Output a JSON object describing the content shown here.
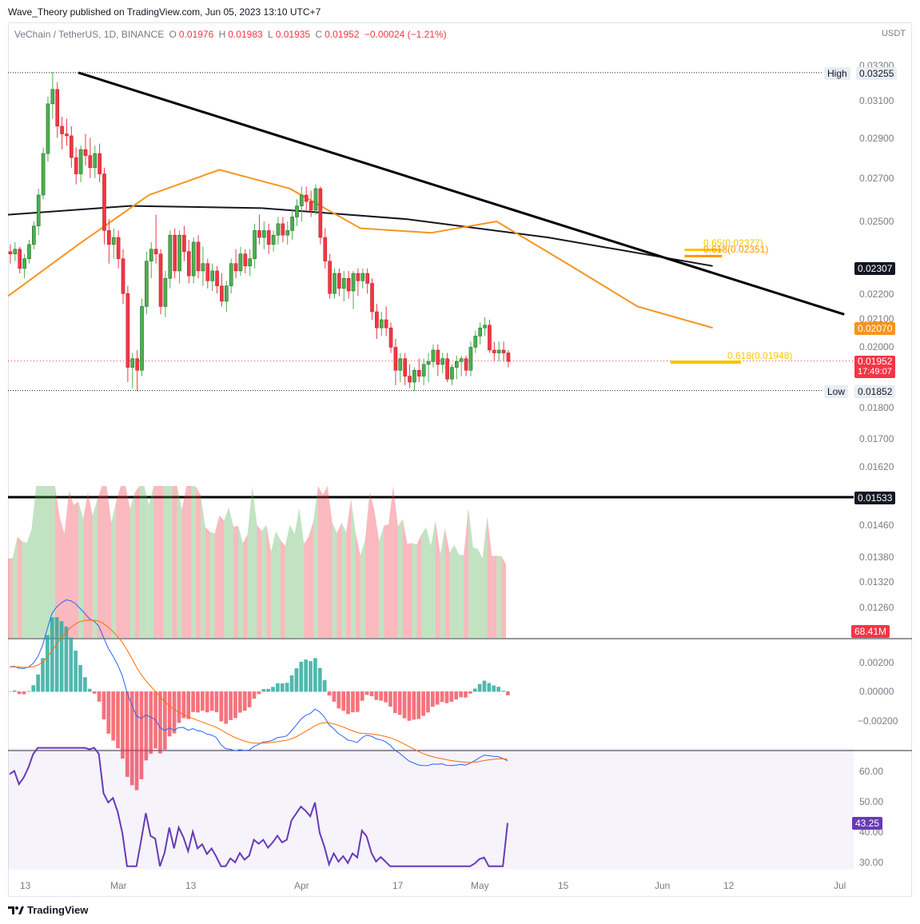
{
  "header": {
    "publisher": "Wave_Theory published on TradingView.com, Jun 05, 2023 13:10 UTC+7"
  },
  "legend": {
    "symbol": "VeChain / TetherUS, 1D, BINANCE",
    "o_label": "O",
    "o_value": "0.01976",
    "h_label": "H",
    "h_value": "0.01983",
    "l_label": "L",
    "l_value": "0.01935",
    "c_label": "C",
    "c_value": "0.01952",
    "change": "−0.00024 (−1.21%)"
  },
  "unit": "USDT",
  "colors": {
    "up": "#26a69a",
    "up_body": "#4caf50",
    "down": "#f23645",
    "ma50": "#f7941d",
    "ma200": "#131722",
    "fib": "#f7c600",
    "fib_strong": "#ff9800",
    "macd": "#2962ff",
    "signal": "#ff6d00",
    "rsi": "#673ab7"
  },
  "price_axis": {
    "ticks": [
      "0.03300",
      "0.03100",
      "0.02900",
      "0.02700",
      "0.02500",
      "0.02200",
      "0.02100",
      "0.02000",
      "0.01800",
      "0.01700",
      "0.01620",
      "0.01460",
      "0.01380",
      "0.01320",
      "0.01260"
    ],
    "high_label": "High",
    "high_value": "0.03255",
    "low_label": "Low",
    "low_value": "0.01852",
    "ma200_value": "0.02307",
    "ma50_value": "0.02070",
    "last_price": "0.01952",
    "countdown": "17:49:07",
    "support_value": "0.01533",
    "volume_value": "68.41M"
  },
  "annotations": {
    "fib_65": "0.65(0.02377)",
    "fib_618_top": "0.618(0.02351)",
    "fib_618_bottom": "0.618(0.01948)"
  },
  "macd_axis": {
    "ticks": [
      "0.00200",
      "0.00000",
      "−0.00200"
    ]
  },
  "rsi_axis": {
    "ticks": [
      "60.00",
      "50.00",
      "40.00",
      "30.00"
    ],
    "value": "43.25"
  },
  "x_axis": {
    "ticks": [
      "13",
      "Mar",
      "13",
      "Apr",
      "17",
      "May",
      "15",
      "Jun",
      "12",
      "Jul"
    ]
  },
  "footer": {
    "brand": "TradingView"
  },
  "chart_data": {
    "type": "candlestick",
    "title": "VeChain / TetherUS, 1D, BINANCE",
    "x_range": [
      "2023-01-06",
      "2023-07-05"
    ],
    "y_range": [
      0.0122,
      0.0335
    ],
    "ohlc_start": "2023-01-06",
    "ohlc": [
      [
        0.0237,
        0.024,
        0.0232,
        0.0236
      ],
      [
        0.0236,
        0.0241,
        0.0233,
        0.0238
      ],
      [
        0.0238,
        0.0239,
        0.0228,
        0.023
      ],
      [
        0.023,
        0.0236,
        0.0226,
        0.0234
      ],
      [
        0.0234,
        0.0242,
        0.0232,
        0.024
      ],
      [
        0.024,
        0.025,
        0.0238,
        0.0248
      ],
      [
        0.0248,
        0.0265,
        0.0244,
        0.0262
      ],
      [
        0.0262,
        0.0285,
        0.026,
        0.0282
      ],
      [
        0.0282,
        0.0312,
        0.0278,
        0.0308
      ],
      [
        0.0308,
        0.0326,
        0.03,
        0.0316
      ],
      [
        0.0316,
        0.032,
        0.029,
        0.0296
      ],
      [
        0.0296,
        0.0301,
        0.0284,
        0.0292
      ],
      [
        0.0292,
        0.03,
        0.0286,
        0.0291
      ],
      [
        0.0291,
        0.0296,
        0.0275,
        0.028
      ],
      [
        0.028,
        0.0285,
        0.0267,
        0.0272
      ],
      [
        0.0272,
        0.0286,
        0.0268,
        0.0284
      ],
      [
        0.0284,
        0.0292,
        0.0276,
        0.0281
      ],
      [
        0.0281,
        0.029,
        0.027,
        0.0275
      ],
      [
        0.0275,
        0.0286,
        0.027,
        0.0282
      ],
      [
        0.0282,
        0.0287,
        0.0268,
        0.0272
      ],
      [
        0.0272,
        0.0275,
        0.024,
        0.0246
      ],
      [
        0.0246,
        0.0251,
        0.0232,
        0.024
      ],
      [
        0.024,
        0.0247,
        0.0234,
        0.0243
      ],
      [
        0.0243,
        0.0246,
        0.023,
        0.0234
      ],
      [
        0.0234,
        0.0238,
        0.0216,
        0.022
      ],
      [
        0.022,
        0.0223,
        0.0188,
        0.0193
      ],
      [
        0.0193,
        0.0198,
        0.0186,
        0.0196
      ],
      [
        0.0196,
        0.0199,
        0.0185,
        0.0192
      ],
      [
        0.0192,
        0.0218,
        0.019,
        0.0215
      ],
      [
        0.0215,
        0.0237,
        0.0212,
        0.0233
      ],
      [
        0.0233,
        0.0241,
        0.0226,
        0.0238
      ],
      [
        0.0238,
        0.0253,
        0.0232,
        0.0236
      ],
      [
        0.0236,
        0.0238,
        0.0212,
        0.0215
      ],
      [
        0.0215,
        0.0229,
        0.0211,
        0.0226
      ],
      [
        0.0226,
        0.0246,
        0.0222,
        0.0244
      ],
      [
        0.0244,
        0.0247,
        0.0226,
        0.0229
      ],
      [
        0.0229,
        0.0246,
        0.0224,
        0.0244
      ],
      [
        0.0244,
        0.0248,
        0.0233,
        0.0237
      ],
      [
        0.0237,
        0.0242,
        0.0224,
        0.0227
      ],
      [
        0.0227,
        0.0243,
        0.0224,
        0.0241
      ],
      [
        0.0241,
        0.0244,
        0.0226,
        0.0229
      ],
      [
        0.0229,
        0.0239,
        0.0223,
        0.0232
      ],
      [
        0.0232,
        0.0234,
        0.0222,
        0.0225
      ],
      [
        0.0225,
        0.0232,
        0.0221,
        0.0229
      ],
      [
        0.0229,
        0.0231,
        0.022,
        0.0223
      ],
      [
        0.0223,
        0.0228,
        0.0215,
        0.0217
      ],
      [
        0.0217,
        0.0225,
        0.0213,
        0.0223
      ],
      [
        0.0223,
        0.0234,
        0.022,
        0.0232
      ],
      [
        0.0232,
        0.0238,
        0.0226,
        0.0229
      ],
      [
        0.0229,
        0.0239,
        0.0227,
        0.0236
      ],
      [
        0.0236,
        0.0238,
        0.0228,
        0.0231
      ],
      [
        0.0231,
        0.0238,
        0.0227,
        0.0234
      ],
      [
        0.0234,
        0.0249,
        0.023,
        0.0246
      ],
      [
        0.0246,
        0.0253,
        0.024,
        0.0243
      ],
      [
        0.0243,
        0.025,
        0.0238,
        0.0246
      ],
      [
        0.0246,
        0.0249,
        0.0236,
        0.024
      ],
      [
        0.024,
        0.0246,
        0.0237,
        0.0244
      ],
      [
        0.0244,
        0.0252,
        0.024,
        0.0249
      ],
      [
        0.0249,
        0.0252,
        0.0241,
        0.0244
      ],
      [
        0.0244,
        0.025,
        0.024,
        0.0246
      ],
      [
        0.0246,
        0.0255,
        0.0242,
        0.0252
      ],
      [
        0.0252,
        0.026,
        0.0248,
        0.0257
      ],
      [
        0.0257,
        0.0266,
        0.025,
        0.0262
      ],
      [
        0.0262,
        0.0266,
        0.0255,
        0.0259
      ],
      [
        0.0259,
        0.0264,
        0.0252,
        0.0255
      ],
      [
        0.0255,
        0.0267,
        0.0253,
        0.0265
      ],
      [
        0.0265,
        0.0266,
        0.024,
        0.0243
      ],
      [
        0.0243,
        0.0247,
        0.023,
        0.0233
      ],
      [
        0.0233,
        0.0236,
        0.0218,
        0.022
      ],
      [
        0.022,
        0.023,
        0.0218,
        0.0228
      ],
      [
        0.0228,
        0.023,
        0.0219,
        0.0222
      ],
      [
        0.0222,
        0.0229,
        0.0217,
        0.0226
      ],
      [
        0.0226,
        0.0229,
        0.0218,
        0.0221
      ],
      [
        0.0221,
        0.0229,
        0.0214,
        0.0228
      ],
      [
        0.0228,
        0.023,
        0.0219,
        0.0225
      ],
      [
        0.0225,
        0.023,
        0.0222,
        0.0228
      ],
      [
        0.0228,
        0.023,
        0.022,
        0.0224
      ],
      [
        0.0224,
        0.0226,
        0.021,
        0.0213
      ],
      [
        0.0213,
        0.0216,
        0.0203,
        0.0207
      ],
      [
        0.0207,
        0.0213,
        0.0204,
        0.021
      ],
      [
        0.021,
        0.0215,
        0.0204,
        0.0207
      ],
      [
        0.0207,
        0.0209,
        0.0198,
        0.02
      ],
      [
        0.02,
        0.0203,
        0.0187,
        0.0192
      ],
      [
        0.0192,
        0.0198,
        0.0188,
        0.0196
      ],
      [
        0.0196,
        0.0198,
        0.0187,
        0.019
      ],
      [
        0.019,
        0.0194,
        0.0186,
        0.0188
      ],
      [
        0.0188,
        0.0193,
        0.0185,
        0.0192
      ],
      [
        0.0192,
        0.0196,
        0.0188,
        0.019
      ],
      [
        0.019,
        0.0196,
        0.0187,
        0.0194
      ],
      [
        0.0194,
        0.0198,
        0.0188,
        0.0195
      ],
      [
        0.0195,
        0.0201,
        0.0193,
        0.0199
      ],
      [
        0.0199,
        0.0201,
        0.019,
        0.0194
      ],
      [
        0.0194,
        0.0198,
        0.0191,
        0.0196
      ],
      [
        0.0196,
        0.0198,
        0.0188,
        0.0189
      ],
      [
        0.0189,
        0.0194,
        0.0187,
        0.0193
      ],
      [
        0.0193,
        0.0197,
        0.0189,
        0.0195
      ],
      [
        0.0195,
        0.0197,
        0.019,
        0.0196
      ],
      [
        0.0196,
        0.0197,
        0.019,
        0.0192
      ],
      [
        0.0192,
        0.0202,
        0.019,
        0.02
      ],
      [
        0.02,
        0.0206,
        0.0198,
        0.0204
      ],
      [
        0.0204,
        0.0209,
        0.0201,
        0.0207
      ],
      [
        0.0207,
        0.0211,
        0.0204,
        0.0208
      ],
      [
        0.0208,
        0.021,
        0.0198,
        0.0199
      ],
      [
        0.0199,
        0.0202,
        0.0195,
        0.0198
      ],
      [
        0.0198,
        0.0202,
        0.0195,
        0.0199
      ],
      [
        0.0199,
        0.0202,
        0.0195,
        0.0198
      ],
      [
        0.0198,
        0.0199,
        0.0193,
        0.0195
      ]
    ],
    "ma50": [
      [
        "2023-01-06",
        0.0219
      ],
      [
        "2023-01-21",
        0.024
      ],
      [
        "2023-02-05",
        0.0262
      ],
      [
        "2023-02-20",
        0.0274
      ],
      [
        "2023-03-07",
        0.0265
      ],
      [
        "2023-03-22",
        0.0247
      ],
      [
        "2023-04-06",
        0.0245
      ],
      [
        "2023-04-20",
        0.025
      ],
      [
        "2023-05-05",
        0.0232
      ],
      [
        "2023-05-20",
        0.0215
      ],
      [
        "2023-06-05",
        0.0207
      ]
    ],
    "ma200": [
      [
        "2023-01-06",
        0.0253
      ],
      [
        "2023-02-01",
        0.0257
      ],
      [
        "2023-03-01",
        0.0256
      ],
      [
        "2023-04-01",
        0.0251
      ],
      [
        "2023-05-01",
        0.0243
      ],
      [
        "2023-06-05",
        0.0231
      ]
    ],
    "trendline": [
      [
        "2023-01-21",
        0.03255
      ],
      [
        "2023-07-03",
        0.0212
      ]
    ],
    "support_level": 0.01533,
    "high": 0.03255,
    "low": 0.01852,
    "fib_levels": [
      {
        "label": "0.65(0.02377)",
        "value": 0.02377
      },
      {
        "label": "0.618(0.02351)",
        "value": 0.02351
      },
      {
        "label": "0.618(0.01948)",
        "value": 0.01948
      }
    ],
    "volume_last": "68.41M",
    "macd": {
      "macd_range": [
        -0.0025,
        0.0035
      ]
    },
    "rsi": {
      "last": 43.25,
      "range": [
        28,
        68
      ]
    }
  }
}
